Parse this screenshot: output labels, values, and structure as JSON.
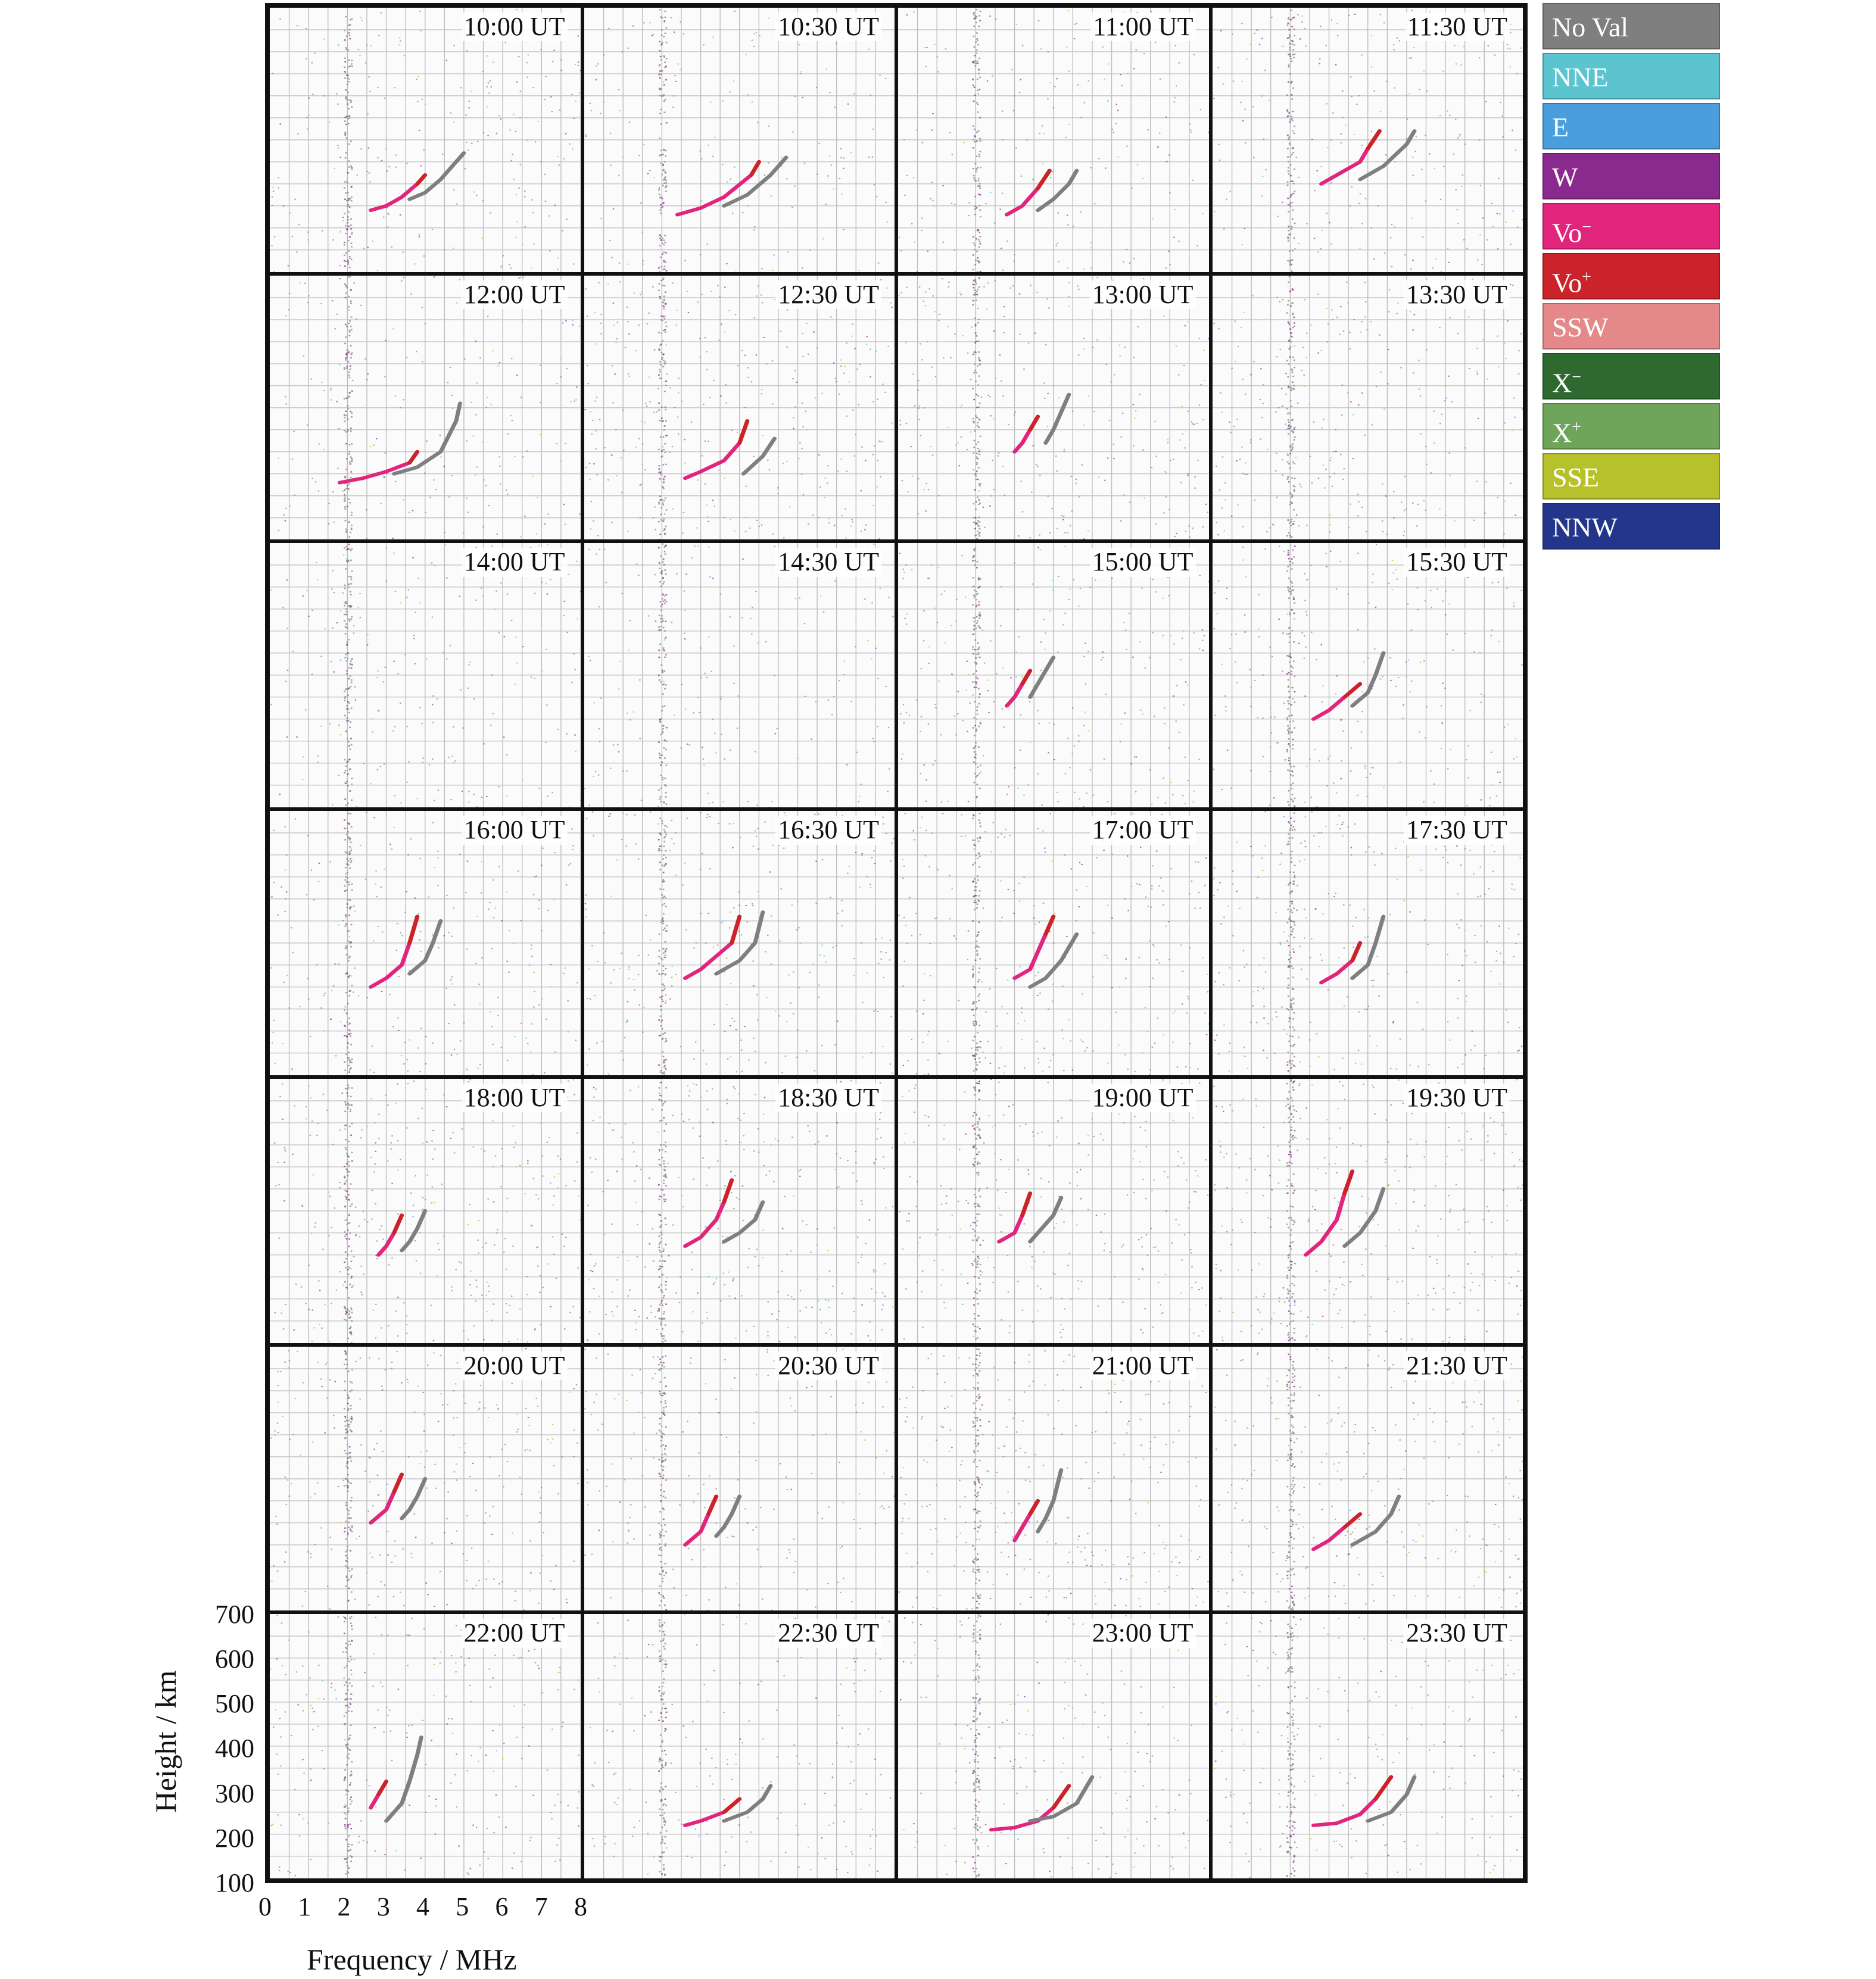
{
  "legend": [
    {
      "label": "No Val",
      "sup": "",
      "color": "#7f7f7f"
    },
    {
      "label": "NNE",
      "sup": "",
      "color": "#5bc4ce"
    },
    {
      "label": "E",
      "sup": "",
      "color": "#4b9ede"
    },
    {
      "label": "W",
      "sup": "",
      "color": "#8b2a8e"
    },
    {
      "label": "Vo",
      "sup": "−",
      "color": "#e1257d"
    },
    {
      "label": "Vo",
      "sup": "+",
      "color": "#cc2229"
    },
    {
      "label": "SSW",
      "sup": "",
      "color": "#e5888a"
    },
    {
      "label": "X",
      "sup": "−",
      "color": "#2e6a2f"
    },
    {
      "label": "X",
      "sup": "+",
      "color": "#6fa55a"
    },
    {
      "label": "SSE",
      "sup": "",
      "color": "#b7c12b"
    },
    {
      "label": "NNW",
      "sup": "",
      "color": "#24368c"
    }
  ],
  "chart_data": {
    "type": "scatter",
    "xlabel": "Frequency / MHz",
    "ylabel": "Height / km",
    "xlim": [
      0,
      8
    ],
    "ylim": [
      100,
      700
    ],
    "xticks": [
      "0",
      "1",
      "2",
      "3",
      "4",
      "5",
      "6",
      "7",
      "8"
    ],
    "yticks": [
      "100",
      "200",
      "300",
      "400",
      "500",
      "600",
      "700"
    ],
    "grid": true,
    "layout": {
      "rows": 7,
      "cols": 4
    },
    "panels": [
      {
        "time": "10:00 UT",
        "o_trace": [
          [
            2.6,
            240
          ],
          [
            3.0,
            250
          ],
          [
            3.4,
            270
          ],
          [
            3.8,
            300
          ],
          [
            4.0,
            320
          ]
        ],
        "x_trace": [
          [
            3.6,
            265
          ],
          [
            4.0,
            280
          ],
          [
            4.4,
            310
          ],
          [
            5.0,
            370
          ]
        ],
        "noise": 0.9
      },
      {
        "time": "10:30 UT",
        "o_trace": [
          [
            2.4,
            230
          ],
          [
            3.0,
            245
          ],
          [
            3.6,
            270
          ],
          [
            4.3,
            320
          ],
          [
            4.5,
            350
          ]
        ],
        "x_trace": [
          [
            3.6,
            250
          ],
          [
            4.2,
            275
          ],
          [
            4.8,
            320
          ],
          [
            5.2,
            360
          ]
        ],
        "noise": 0.6
      },
      {
        "time": "11:00 UT",
        "o_trace": [
          [
            2.8,
            230
          ],
          [
            3.2,
            250
          ],
          [
            3.6,
            290
          ],
          [
            3.9,
            330
          ]
        ],
        "x_trace": [
          [
            3.6,
            240
          ],
          [
            4.0,
            265
          ],
          [
            4.4,
            300
          ],
          [
            4.6,
            330
          ]
        ],
        "noise": 0.7
      },
      {
        "time": "11:30 UT",
        "o_trace": [
          [
            2.8,
            300
          ],
          [
            3.2,
            320
          ],
          [
            3.8,
            350
          ],
          [
            4.0,
            380
          ],
          [
            4.3,
            420
          ]
        ],
        "x_trace": [
          [
            3.8,
            310
          ],
          [
            4.4,
            340
          ],
          [
            5.0,
            390
          ],
          [
            5.2,
            420
          ]
        ],
        "noise": 0.9
      },
      {
        "time": "12:00 UT",
        "o_trace": [
          [
            1.8,
            230
          ],
          [
            2.4,
            240
          ],
          [
            3.0,
            255
          ],
          [
            3.6,
            275
          ],
          [
            3.8,
            300
          ]
        ],
        "x_trace": [
          [
            3.2,
            250
          ],
          [
            3.8,
            265
          ],
          [
            4.4,
            300
          ],
          [
            4.8,
            370
          ],
          [
            4.9,
            410
          ]
        ],
        "noise": 0.7
      },
      {
        "time": "12:30 UT",
        "o_trace": [
          [
            2.6,
            240
          ],
          [
            3.0,
            255
          ],
          [
            3.6,
            280
          ],
          [
            4.0,
            320
          ],
          [
            4.2,
            370
          ]
        ],
        "x_trace": [
          [
            4.1,
            250
          ],
          [
            4.6,
            290
          ],
          [
            4.9,
            330
          ]
        ],
        "noise": 1.2
      },
      {
        "time": "13:00 UT",
        "o_trace": [
          [
            3.0,
            300
          ],
          [
            3.2,
            320
          ],
          [
            3.4,
            350
          ],
          [
            3.6,
            380
          ]
        ],
        "x_trace": [
          [
            3.8,
            320
          ],
          [
            4.0,
            350
          ],
          [
            4.2,
            390
          ],
          [
            4.4,
            430
          ]
        ],
        "noise": 1.0
      },
      {
        "time": "13:30 UT",
        "o_trace": [],
        "x_trace": [],
        "noise": 1.0
      },
      {
        "time": "14:00 UT",
        "o_trace": [],
        "x_trace": [],
        "noise": 0.8
      },
      {
        "time": "14:30 UT",
        "o_trace": [],
        "x_trace": [],
        "noise": 0.6
      },
      {
        "time": "15:00 UT",
        "o_trace": [
          [
            2.8,
            330
          ],
          [
            3.0,
            350
          ],
          [
            3.2,
            380
          ],
          [
            3.4,
            410
          ]
        ],
        "x_trace": [
          [
            3.4,
            350
          ],
          [
            3.6,
            380
          ],
          [
            3.8,
            410
          ],
          [
            4.0,
            440
          ]
        ],
        "noise": 0.9
      },
      {
        "time": "15:30 UT",
        "o_trace": [
          [
            2.6,
            300
          ],
          [
            3.0,
            320
          ],
          [
            3.4,
            350
          ],
          [
            3.8,
            380
          ]
        ],
        "x_trace": [
          [
            3.6,
            330
          ],
          [
            4.0,
            360
          ],
          [
            4.2,
            400
          ],
          [
            4.4,
            450
          ]
        ],
        "noise": 0.9
      },
      {
        "time": "16:00 UT",
        "o_trace": [
          [
            2.6,
            300
          ],
          [
            3.0,
            320
          ],
          [
            3.4,
            350
          ],
          [
            3.6,
            400
          ],
          [
            3.8,
            460
          ]
        ],
        "x_trace": [
          [
            3.6,
            330
          ],
          [
            4.0,
            360
          ],
          [
            4.2,
            400
          ],
          [
            4.4,
            450
          ]
        ],
        "noise": 0.9
      },
      {
        "time": "16:30 UT",
        "o_trace": [
          [
            2.6,
            320
          ],
          [
            3.0,
            340
          ],
          [
            3.4,
            370
          ],
          [
            3.8,
            400
          ],
          [
            4.0,
            460
          ]
        ],
        "x_trace": [
          [
            3.4,
            330
          ],
          [
            4.0,
            360
          ],
          [
            4.4,
            400
          ],
          [
            4.6,
            470
          ]
        ],
        "noise": 1.0
      },
      {
        "time": "17:00 UT",
        "o_trace": [
          [
            3.0,
            320
          ],
          [
            3.4,
            340
          ],
          [
            3.6,
            380
          ],
          [
            3.8,
            420
          ],
          [
            4.0,
            460
          ]
        ],
        "x_trace": [
          [
            3.4,
            300
          ],
          [
            3.8,
            320
          ],
          [
            4.2,
            360
          ],
          [
            4.6,
            420
          ]
        ],
        "noise": 1.0
      },
      {
        "time": "17:30 UT",
        "o_trace": [
          [
            2.8,
            310
          ],
          [
            3.2,
            330
          ],
          [
            3.6,
            360
          ],
          [
            3.8,
            400
          ]
        ],
        "x_trace": [
          [
            3.6,
            320
          ],
          [
            4.0,
            350
          ],
          [
            4.2,
            400
          ],
          [
            4.4,
            460
          ]
        ],
        "noise": 1.0
      },
      {
        "time": "18:00 UT",
        "o_trace": [
          [
            2.8,
            300
          ],
          [
            3.0,
            320
          ],
          [
            3.2,
            350
          ],
          [
            3.4,
            390
          ]
        ],
        "x_trace": [
          [
            3.4,
            310
          ],
          [
            3.6,
            330
          ],
          [
            3.8,
            360
          ],
          [
            4.0,
            400
          ]
        ],
        "noise": 1.2
      },
      {
        "time": "18:30 UT",
        "o_trace": [
          [
            2.6,
            320
          ],
          [
            3.0,
            340
          ],
          [
            3.4,
            380
          ],
          [
            3.6,
            420
          ],
          [
            3.8,
            470
          ]
        ],
        "x_trace": [
          [
            3.6,
            330
          ],
          [
            4.0,
            350
          ],
          [
            4.4,
            380
          ],
          [
            4.6,
            420
          ]
        ],
        "noise": 1.2
      },
      {
        "time": "19:00 UT",
        "o_trace": [
          [
            2.6,
            330
          ],
          [
            3.0,
            350
          ],
          [
            3.2,
            390
          ],
          [
            3.4,
            440
          ]
        ],
        "x_trace": [
          [
            3.4,
            330
          ],
          [
            3.6,
            350
          ],
          [
            4.0,
            390
          ],
          [
            4.2,
            430
          ]
        ],
        "noise": 1.0
      },
      {
        "time": "19:30 UT",
        "o_trace": [
          [
            2.4,
            300
          ],
          [
            2.8,
            330
          ],
          [
            3.2,
            380
          ],
          [
            3.4,
            440
          ],
          [
            3.6,
            490
          ]
        ],
        "x_trace": [
          [
            3.4,
            320
          ],
          [
            3.8,
            350
          ],
          [
            4.2,
            400
          ],
          [
            4.4,
            450
          ]
        ],
        "noise": 1.2
      },
      {
        "time": "20:00 UT",
        "o_trace": [
          [
            2.6,
            300
          ],
          [
            3.0,
            330
          ],
          [
            3.2,
            370
          ],
          [
            3.4,
            410
          ]
        ],
        "x_trace": [
          [
            3.4,
            310
          ],
          [
            3.6,
            330
          ],
          [
            3.8,
            360
          ],
          [
            4.0,
            400
          ]
        ],
        "noise": 1.0
      },
      {
        "time": "20:30 UT",
        "o_trace": [
          [
            2.6,
            250
          ],
          [
            3.0,
            280
          ],
          [
            3.2,
            320
          ],
          [
            3.4,
            360
          ]
        ],
        "x_trace": [
          [
            3.4,
            270
          ],
          [
            3.6,
            290
          ],
          [
            3.8,
            320
          ],
          [
            4.0,
            360
          ]
        ],
        "noise": 0.7
      },
      {
        "time": "21:00 UT",
        "o_trace": [
          [
            3.0,
            260
          ],
          [
            3.2,
            290
          ],
          [
            3.4,
            320
          ],
          [
            3.6,
            350
          ]
        ],
        "x_trace": [
          [
            3.6,
            280
          ],
          [
            3.8,
            310
          ],
          [
            4.0,
            350
          ],
          [
            4.2,
            420
          ]
        ],
        "noise": 1.1
      },
      {
        "time": "21:30 UT",
        "o_trace": [
          [
            2.6,
            240
          ],
          [
            3.0,
            260
          ],
          [
            3.4,
            290
          ],
          [
            3.8,
            320
          ]
        ],
        "x_trace": [
          [
            3.6,
            250
          ],
          [
            4.2,
            280
          ],
          [
            4.6,
            320
          ],
          [
            4.8,
            360
          ]
        ],
        "noise": 1.0
      },
      {
        "time": "22:00 UT",
        "o_trace": [
          [
            2.6,
            260
          ],
          [
            2.8,
            290
          ],
          [
            3.0,
            320
          ]
        ],
        "x_trace": [
          [
            3.0,
            230
          ],
          [
            3.4,
            270
          ],
          [
            3.6,
            320
          ],
          [
            3.8,
            380
          ],
          [
            3.9,
            420
          ]
        ],
        "noise": 0.9
      },
      {
        "time": "22:30 UT",
        "o_trace": [
          [
            2.6,
            220
          ],
          [
            3.0,
            230
          ],
          [
            3.6,
            250
          ],
          [
            4.0,
            280
          ]
        ],
        "x_trace": [
          [
            3.6,
            230
          ],
          [
            4.2,
            250
          ],
          [
            4.6,
            280
          ],
          [
            4.8,
            310
          ]
        ],
        "noise": 0.7
      },
      {
        "time": "23:00 UT",
        "o_trace": [
          [
            2.4,
            210
          ],
          [
            3.0,
            215
          ],
          [
            3.6,
            230
          ],
          [
            4.0,
            260
          ],
          [
            4.4,
            310
          ]
        ],
        "x_trace": [
          [
            3.4,
            230
          ],
          [
            4.0,
            240
          ],
          [
            4.6,
            270
          ],
          [
            5.0,
            330
          ]
        ],
        "noise": 0.7
      },
      {
        "time": "23:30 UT",
        "o_trace": [
          [
            2.6,
            220
          ],
          [
            3.2,
            225
          ],
          [
            3.8,
            245
          ],
          [
            4.2,
            280
          ],
          [
            4.6,
            330
          ]
        ],
        "x_trace": [
          [
            4.0,
            230
          ],
          [
            4.6,
            250
          ],
          [
            5.0,
            290
          ],
          [
            5.2,
            330
          ]
        ],
        "noise": 0.8
      }
    ]
  }
}
